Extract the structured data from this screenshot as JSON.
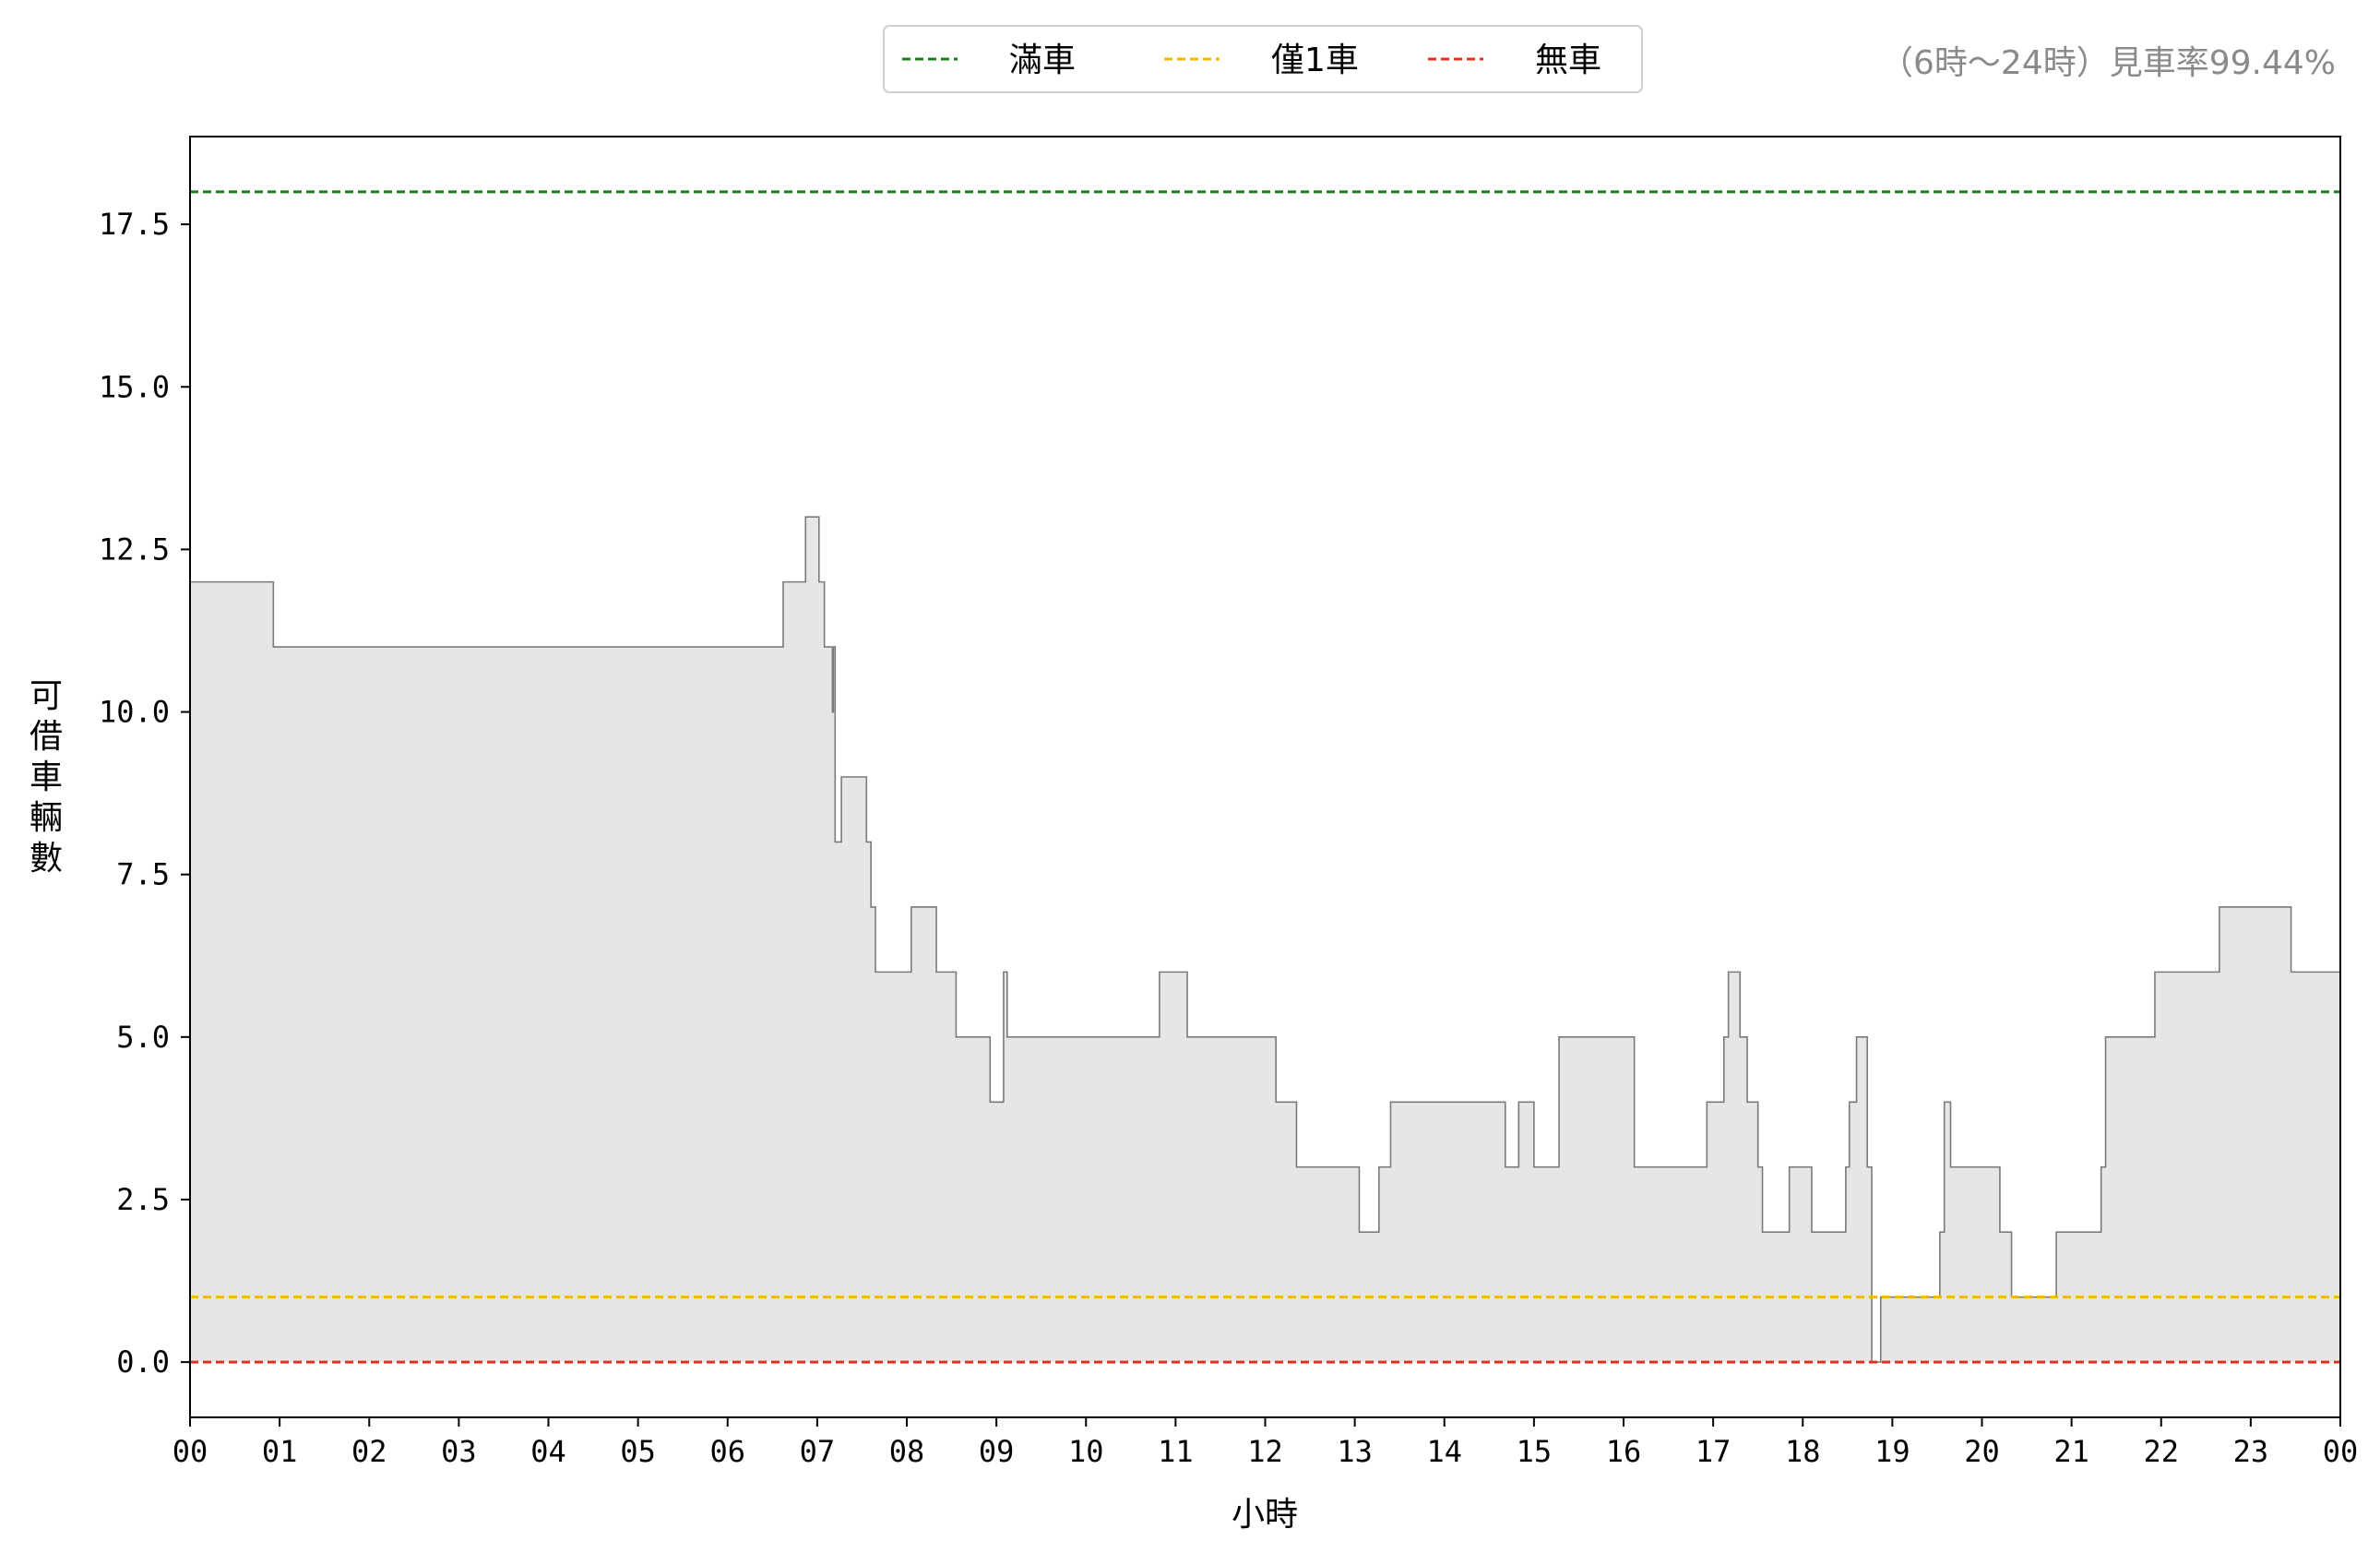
{
  "chart_data": {
    "type": "area",
    "title": "",
    "stat_text": "（6時〜24時）見車率99.44%",
    "xlabel": "小時",
    "ylabel": "可借車輛數",
    "xlim": [
      0,
      24
    ],
    "ylim": [
      -0.85,
      18.85
    ],
    "x_ticks": [
      0,
      1,
      2,
      3,
      4,
      5,
      6,
      7,
      8,
      9,
      10,
      11,
      12,
      13,
      14,
      15,
      16,
      17,
      18,
      19,
      20,
      21,
      22,
      23,
      24
    ],
    "x_tick_labels": [
      "00",
      "01",
      "02",
      "03",
      "04",
      "05",
      "06",
      "07",
      "08",
      "09",
      "10",
      "11",
      "12",
      "13",
      "14",
      "15",
      "16",
      "17",
      "18",
      "19",
      "20",
      "21",
      "22",
      "23",
      "00"
    ],
    "y_ticks": [
      0,
      2.5,
      5,
      7.5,
      10,
      12.5,
      15,
      17.5
    ],
    "y_tick_labels": [
      "0.0",
      "2.5",
      "5.0",
      "7.5",
      "10.0",
      "12.5",
      "15.0",
      "17.5"
    ],
    "grid": false,
    "legend_position": "top-center",
    "reference_lines": [
      {
        "name": "滿車",
        "y": 18,
        "color": "#1a7f1a"
      },
      {
        "name": "僅1車",
        "y": 1,
        "color": "#f5b800"
      },
      {
        "name": "無車",
        "y": 0,
        "color": "#e03020"
      }
    ],
    "series": [
      {
        "line_color": "#7a7a7a",
        "fill_color": "#e6e6e6",
        "step": [
          [
            0.0,
            12
          ],
          [
            0.93,
            11
          ],
          [
            6.62,
            12
          ],
          [
            6.87,
            13
          ],
          [
            7.02,
            12
          ],
          [
            7.08,
            11
          ],
          [
            7.17,
            10
          ],
          [
            7.18,
            11
          ],
          [
            7.2,
            8
          ],
          [
            7.27,
            9
          ],
          [
            7.55,
            8
          ],
          [
            7.6,
            7
          ],
          [
            7.65,
            6
          ],
          [
            8.05,
            7
          ],
          [
            8.33,
            6
          ],
          [
            8.55,
            5
          ],
          [
            8.93,
            4
          ],
          [
            9.08,
            6
          ],
          [
            9.12,
            5
          ],
          [
            10.82,
            6
          ],
          [
            11.13,
            5
          ],
          [
            12.12,
            4
          ],
          [
            12.35,
            3
          ],
          [
            13.05,
            2
          ],
          [
            13.27,
            3
          ],
          [
            13.4,
            4
          ],
          [
            14.68,
            3
          ],
          [
            14.83,
            4
          ],
          [
            15.0,
            3
          ],
          [
            15.28,
            5
          ],
          [
            16.12,
            3
          ],
          [
            16.93,
            4
          ],
          [
            17.12,
            5
          ],
          [
            17.17,
            6
          ],
          [
            17.3,
            5
          ],
          [
            17.38,
            4
          ],
          [
            17.5,
            3
          ],
          [
            17.55,
            2
          ],
          [
            17.85,
            3
          ],
          [
            18.1,
            2
          ],
          [
            18.48,
            3
          ],
          [
            18.52,
            4
          ],
          [
            18.6,
            5
          ],
          [
            18.72,
            3
          ],
          [
            18.77,
            0
          ],
          [
            18.87,
            1
          ],
          [
            19.53,
            2
          ],
          [
            19.58,
            4
          ],
          [
            19.65,
            3
          ],
          [
            20.2,
            2
          ],
          [
            20.33,
            1
          ],
          [
            20.83,
            2
          ],
          [
            21.33,
            3
          ],
          [
            21.38,
            5
          ],
          [
            21.93,
            6
          ],
          [
            22.65,
            7
          ],
          [
            23.45,
            6
          ],
          [
            24.0,
            6
          ]
        ]
      }
    ]
  }
}
